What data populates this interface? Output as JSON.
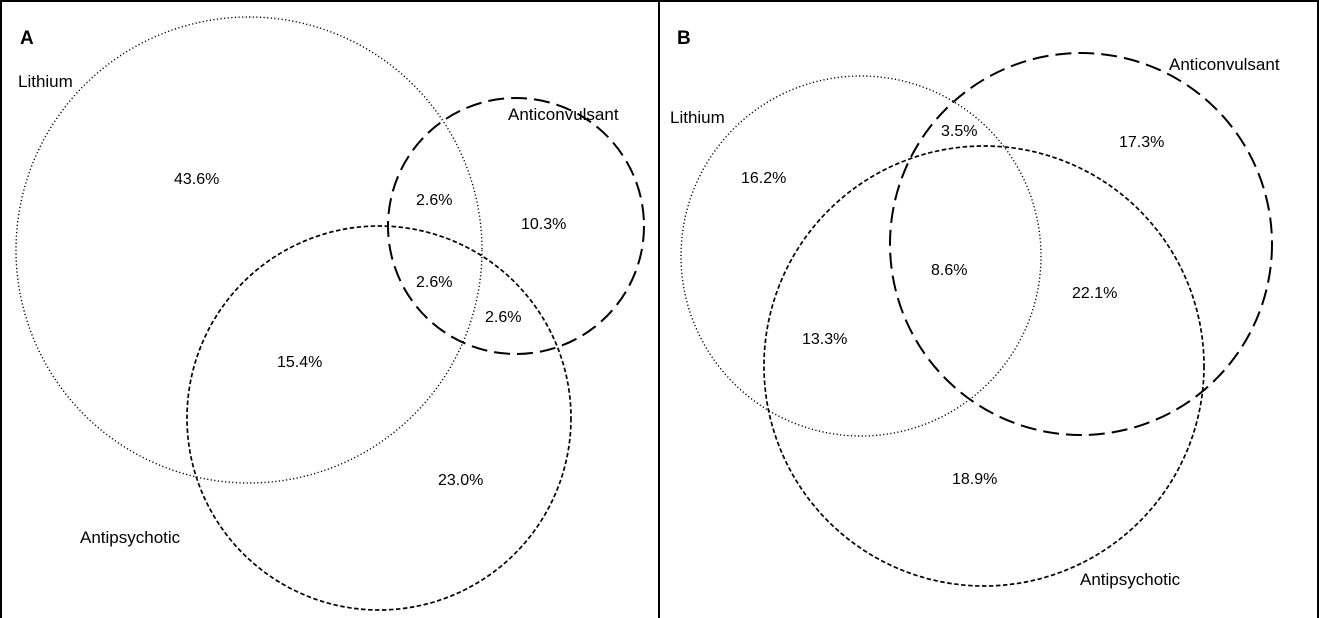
{
  "panels": [
    {
      "letter": "A",
      "sets": {
        "lithium": "Lithium",
        "anticonvulsant": "Anticonvulsant",
        "antipsychotic": "Antipsychotic"
      },
      "regions": {
        "lithium_only": "43.6%",
        "lithium_anticonvulsant": "2.6%",
        "anticonvulsant_only": "10.3%",
        "all_three": "2.6%",
        "anticonvulsant_antipsychotic": "2.6%",
        "lithium_antipsychotic": "15.4%",
        "antipsychotic_only": "23.0%"
      }
    },
    {
      "letter": "B",
      "sets": {
        "lithium": "Lithium",
        "anticonvulsant": "Anticonvulsant",
        "antipsychotic": "Antipsychotic"
      },
      "regions": {
        "lithium_anticonvulsant": "3.5%",
        "anticonvulsant_only": "17.3%",
        "lithium_only": "16.2%",
        "all_three": "8.6%",
        "anticonvulsant_antipsychotic": "22.1%",
        "lithium_antipsychotic": "13.3%",
        "antipsychotic_only": "18.9%"
      }
    }
  ],
  "line_styles": {
    "lithium": "dotted",
    "anticonvulsant": "long-dashed",
    "antipsychotic": "short-dashed"
  }
}
